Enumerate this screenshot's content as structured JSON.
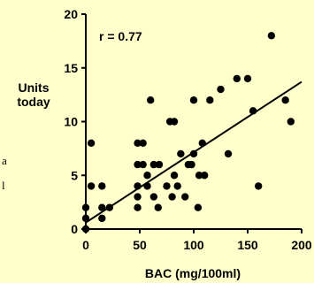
{
  "chart_data": {
    "type": "scatter",
    "title": "",
    "xlabel": "BAC (mg/100ml)",
    "ylabel": "Units today",
    "xlim": [
      0,
      200
    ],
    "ylim": [
      0,
      20
    ],
    "x_ticks": [
      "0",
      "50",
      "100",
      "150",
      "200"
    ],
    "y_ticks": [
      "0",
      "5",
      "10",
      "15",
      "20"
    ],
    "grid": false,
    "annotation": "r = 0.77",
    "trendline": {
      "x": [
        0,
        200
      ],
      "y": [
        0.6,
        13.7
      ]
    },
    "points": [
      {
        "x": 0,
        "y": 0
      },
      {
        "x": 0,
        "y": 1
      },
      {
        "x": 0,
        "y": 2
      },
      {
        "x": 5,
        "y": 4
      },
      {
        "x": 5,
        "y": 8
      },
      {
        "x": 15,
        "y": 1
      },
      {
        "x": 15,
        "y": 2
      },
      {
        "x": 15,
        "y": 4
      },
      {
        "x": 22,
        "y": 2
      },
      {
        "x": 48,
        "y": 2
      },
      {
        "x": 48,
        "y": 3
      },
      {
        "x": 48,
        "y": 4
      },
      {
        "x": 48,
        "y": 6
      },
      {
        "x": 48,
        "y": 8
      },
      {
        "x": 53,
        "y": 6
      },
      {
        "x": 53,
        "y": 8
      },
      {
        "x": 57,
        "y": 4
      },
      {
        "x": 57,
        "y": 5
      },
      {
        "x": 60,
        "y": 12
      },
      {
        "x": 63,
        "y": 3
      },
      {
        "x": 63,
        "y": 6
      },
      {
        "x": 67,
        "y": 2
      },
      {
        "x": 68,
        "y": 6
      },
      {
        "x": 75,
        "y": 4
      },
      {
        "x": 78,
        "y": 10
      },
      {
        "x": 80,
        "y": 3
      },
      {
        "x": 82,
        "y": 5
      },
      {
        "x": 82,
        "y": 10
      },
      {
        "x": 85,
        "y": 4
      },
      {
        "x": 88,
        "y": 7
      },
      {
        "x": 92,
        "y": 3
      },
      {
        "x": 95,
        "y": 6
      },
      {
        "x": 98,
        "y": 6
      },
      {
        "x": 100,
        "y": 12
      },
      {
        "x": 100,
        "y": 7
      },
      {
        "x": 104,
        "y": 2
      },
      {
        "x": 105,
        "y": 5
      },
      {
        "x": 108,
        "y": 8
      },
      {
        "x": 110,
        "y": 5
      },
      {
        "x": 115,
        "y": 12
      },
      {
        "x": 125,
        "y": 13
      },
      {
        "x": 132,
        "y": 7
      },
      {
        "x": 140,
        "y": 14
      },
      {
        "x": 150,
        "y": 14
      },
      {
        "x": 155,
        "y": 11
      },
      {
        "x": 160,
        "y": 4
      },
      {
        "x": 172,
        "y": 18
      },
      {
        "x": 185,
        "y": 12
      },
      {
        "x": 190,
        "y": 10
      }
    ]
  },
  "side_fragments": [
    "a",
    "l"
  ]
}
